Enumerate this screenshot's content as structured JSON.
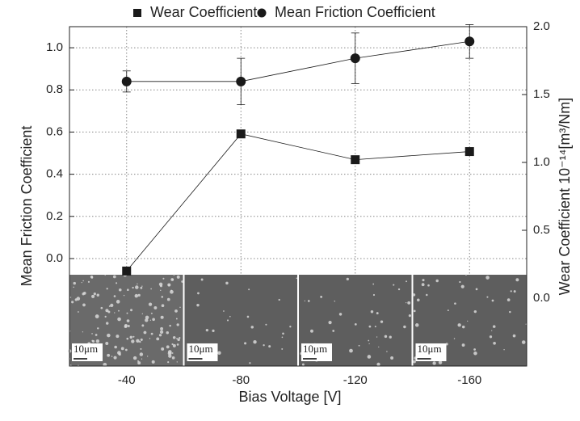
{
  "chart_data": {
    "type": "dual-line",
    "legend_position": "top",
    "x_label": "Bias Voltage [V]",
    "y_label": "Mean Friction Coefficient",
    "y2_label": "Wear Coefficient 10⁻¹⁴[m³/Nm]",
    "categories": [
      "-40",
      "-80",
      "-120",
      "-160"
    ],
    "ylim": [
      -0.51,
      1.1
    ],
    "yticks": [
      {
        "value": 0,
        "label": "0.0"
      },
      0.2,
      0.4,
      0.6,
      0.8,
      {
        "value": 1,
        "label": "1.0"
      }
    ],
    "y2lim": [
      -0.5,
      2.0
    ],
    "y2ticks": [
      {
        "value": 0,
        "label": "0.0"
      },
      0.5,
      {
        "value": 1,
        "label": "1.0"
      },
      1.5,
      {
        "value": 2,
        "label": "2.0"
      }
    ],
    "grid": true,
    "series": [
      {
        "name": "Wear Coefficient",
        "marker": "square",
        "color": "#1a1a1a",
        "axis": "y2",
        "values": [
          0.2,
          1.21,
          1.02,
          1.08
        ]
      },
      {
        "name": "Mean Friction Coefficient",
        "marker": "circle",
        "color": "#1a1a1a",
        "axis": "y",
        "values": [
          0.84,
          0.84,
          0.95,
          1.03
        ],
        "errors": [
          0.05,
          0.11,
          0.12,
          0.08
        ]
      }
    ],
    "image_scale_labels": [
      "10μm",
      "10μm",
      "10μm",
      "10μm"
    ]
  }
}
